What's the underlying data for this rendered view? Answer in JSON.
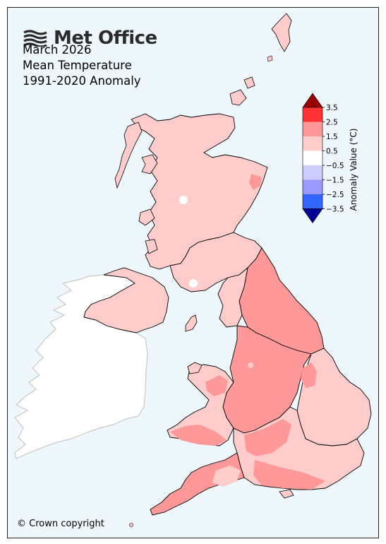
{
  "logo": {
    "text": "Met Office",
    "icon": "met-office-wave-icon"
  },
  "title": {
    "line1": "March 2026",
    "line2": "Mean Temperature",
    "line3": "1991-2020 Anomaly"
  },
  "legend": {
    "label": "Anomaly Value (°C)",
    "ticks": [
      "3.5",
      "2.5",
      "1.5",
      "0.5",
      "−0.5",
      "−1.5",
      "−2.5",
      "−3.5"
    ],
    "bins": [
      {
        "range": "> 3.5",
        "color": "#990000"
      },
      {
        "range": "2.5 to 3.5",
        "color": "#ff3333"
      },
      {
        "range": "1.5 to 2.5",
        "color": "#ff9999"
      },
      {
        "range": "0.5 to 1.5",
        "color": "#ffcccc"
      },
      {
        "range": "-0.5 to 0.5",
        "color": "#ffffff"
      },
      {
        "range": "-1.5 to -0.5",
        "color": "#ccccff"
      },
      {
        "range": "-2.5 to -1.5",
        "color": "#9999ff"
      },
      {
        "range": "-3.5 to -2.5",
        "color": "#3366ff"
      },
      {
        "range": "< -3.5",
        "color": "#000099"
      }
    ]
  },
  "map": {
    "colors": {
      "sea": "#eef7fb",
      "ireland": "#ffffff",
      "ireland_border": "#c8c8c8",
      "anomaly_0_5_to_1_5": "#ffcccc",
      "anomaly_1_5_to_2_5": "#ff9999",
      "anomaly_neutral": "#ffffff",
      "borders": "#000000"
    }
  },
  "footer": {
    "copyright": "© Crown copyright"
  }
}
